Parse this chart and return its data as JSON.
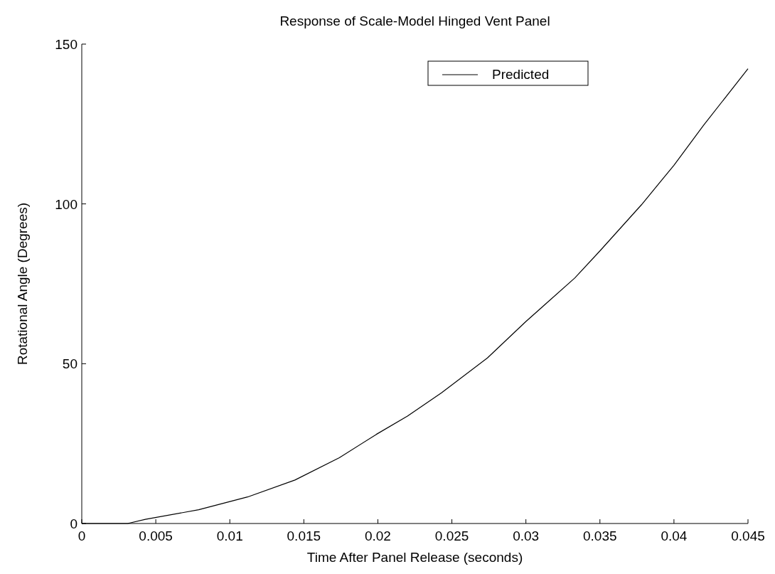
{
  "chart_data": {
    "type": "line",
    "title": "Response of Scale-Model Hinged Vent Panel",
    "xlabel": "Time After Panel Release (seconds)",
    "ylabel": "Rotational Angle (Degrees)",
    "xlim": [
      0,
      0.045
    ],
    "xticks": [
      0,
      0.005,
      0.01,
      0.015,
      0.02,
      0.025,
      0.03,
      0.035,
      0.04,
      0.045
    ],
    "ylim": [
      0,
      150
    ],
    "yticks": [
      0,
      50,
      100,
      150
    ],
    "legend": "top right",
    "grid": false,
    "series": [
      {
        "name": "Predicted",
        "color": "#000000",
        "x": [
          0,
          0.0031,
          0.0043,
          0.0079,
          0.0112,
          0.0144,
          0.0174,
          0.0199,
          0.022,
          0.0243,
          0.0274,
          0.03,
          0.0333,
          0.035,
          0.0378,
          0.04,
          0.042,
          0.045
        ],
        "values": [
          0,
          0,
          1.3,
          4.3,
          8.3,
          13.6,
          20.6,
          27.9,
          33.6,
          40.9,
          51.8,
          63.2,
          76.8,
          85.3,
          99.7,
          112.1,
          124.6,
          142.3
        ]
      }
    ]
  }
}
